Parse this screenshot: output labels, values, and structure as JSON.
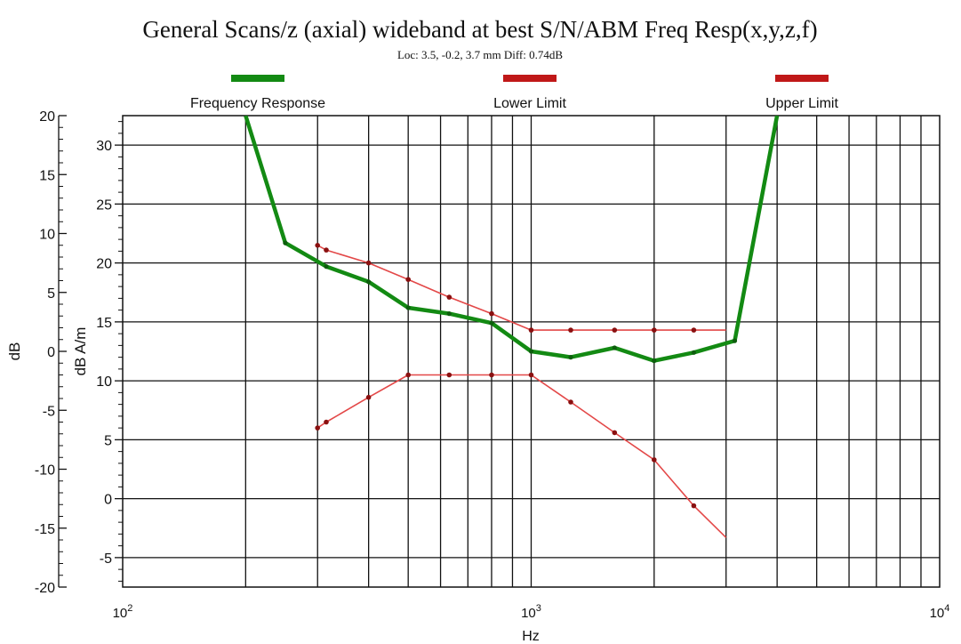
{
  "chart_data": {
    "type": "line",
    "title": "General Scans/z (axial) wideband at best S/N/ABM Freq Resp(x,y,z,f)",
    "subtitle": "Loc: 3.5, -0.2, 3.7 mm Diff: 0.74dB",
    "xlabel": "Hz",
    "ylabel": "dB",
    "ylabel2": "dB A/m",
    "x_scale": "log",
    "xlim": [
      100,
      10000
    ],
    "ylim": [
      -20,
      20
    ],
    "y2lim": [
      -7.5,
      32.5
    ],
    "grid": true,
    "legend_position": "top",
    "x_ticks": [
      {
        "value": 100,
        "base": "10",
        "exp": "2"
      },
      {
        "value": 1000,
        "base": "10",
        "exp": "3"
      },
      {
        "value": 10000,
        "base": "10",
        "exp": "4"
      }
    ],
    "y_ticks": [
      "20",
      "15",
      "10",
      "5",
      "0",
      "-5",
      "-10",
      "-15",
      "-20"
    ],
    "y2_ticks": [
      "30",
      "25",
      "20",
      "15",
      "10",
      "5",
      "0",
      "-5"
    ],
    "series": [
      {
        "name": "Frequency Response",
        "color": "#138a13",
        "x": [
          200,
          250,
          315,
          400,
          500,
          630,
          800,
          1000,
          1250,
          1600,
          2000,
          2500,
          3150,
          4000
        ],
        "y": [
          20,
          9.2,
          7.2,
          5.9,
          3.7,
          3.2,
          2.4,
          0,
          -0.5,
          0.3,
          -0.8,
          -0.1,
          0.9,
          20
        ]
      },
      {
        "name": "Lower Limit",
        "color": "#e34848",
        "x": [
          300,
          315,
          400,
          500,
          630,
          800,
          1000,
          1250,
          1600,
          2000,
          2500,
          3000
        ],
        "y": [
          -6.5,
          -6.0,
          -3.9,
          -2.0,
          -2.0,
          -2.0,
          -2.0,
          -4.3,
          -6.9,
          -9.2,
          -13.1,
          -15.8
        ]
      },
      {
        "name": "Upper Limit",
        "color": "#e34848",
        "x": [
          300,
          315,
          400,
          500,
          630,
          800,
          1000,
          1250,
          1600,
          2000,
          2500,
          3000
        ],
        "y": [
          9.0,
          8.6,
          7.5,
          6.1,
          4.6,
          3.2,
          1.8,
          1.8,
          1.8,
          1.8,
          1.8,
          1.8
        ]
      }
    ],
    "legend_colors": {
      "Frequency Response": "#138a13",
      "Lower Limit": "#c01818",
      "Upper Limit": "#c01818"
    }
  }
}
